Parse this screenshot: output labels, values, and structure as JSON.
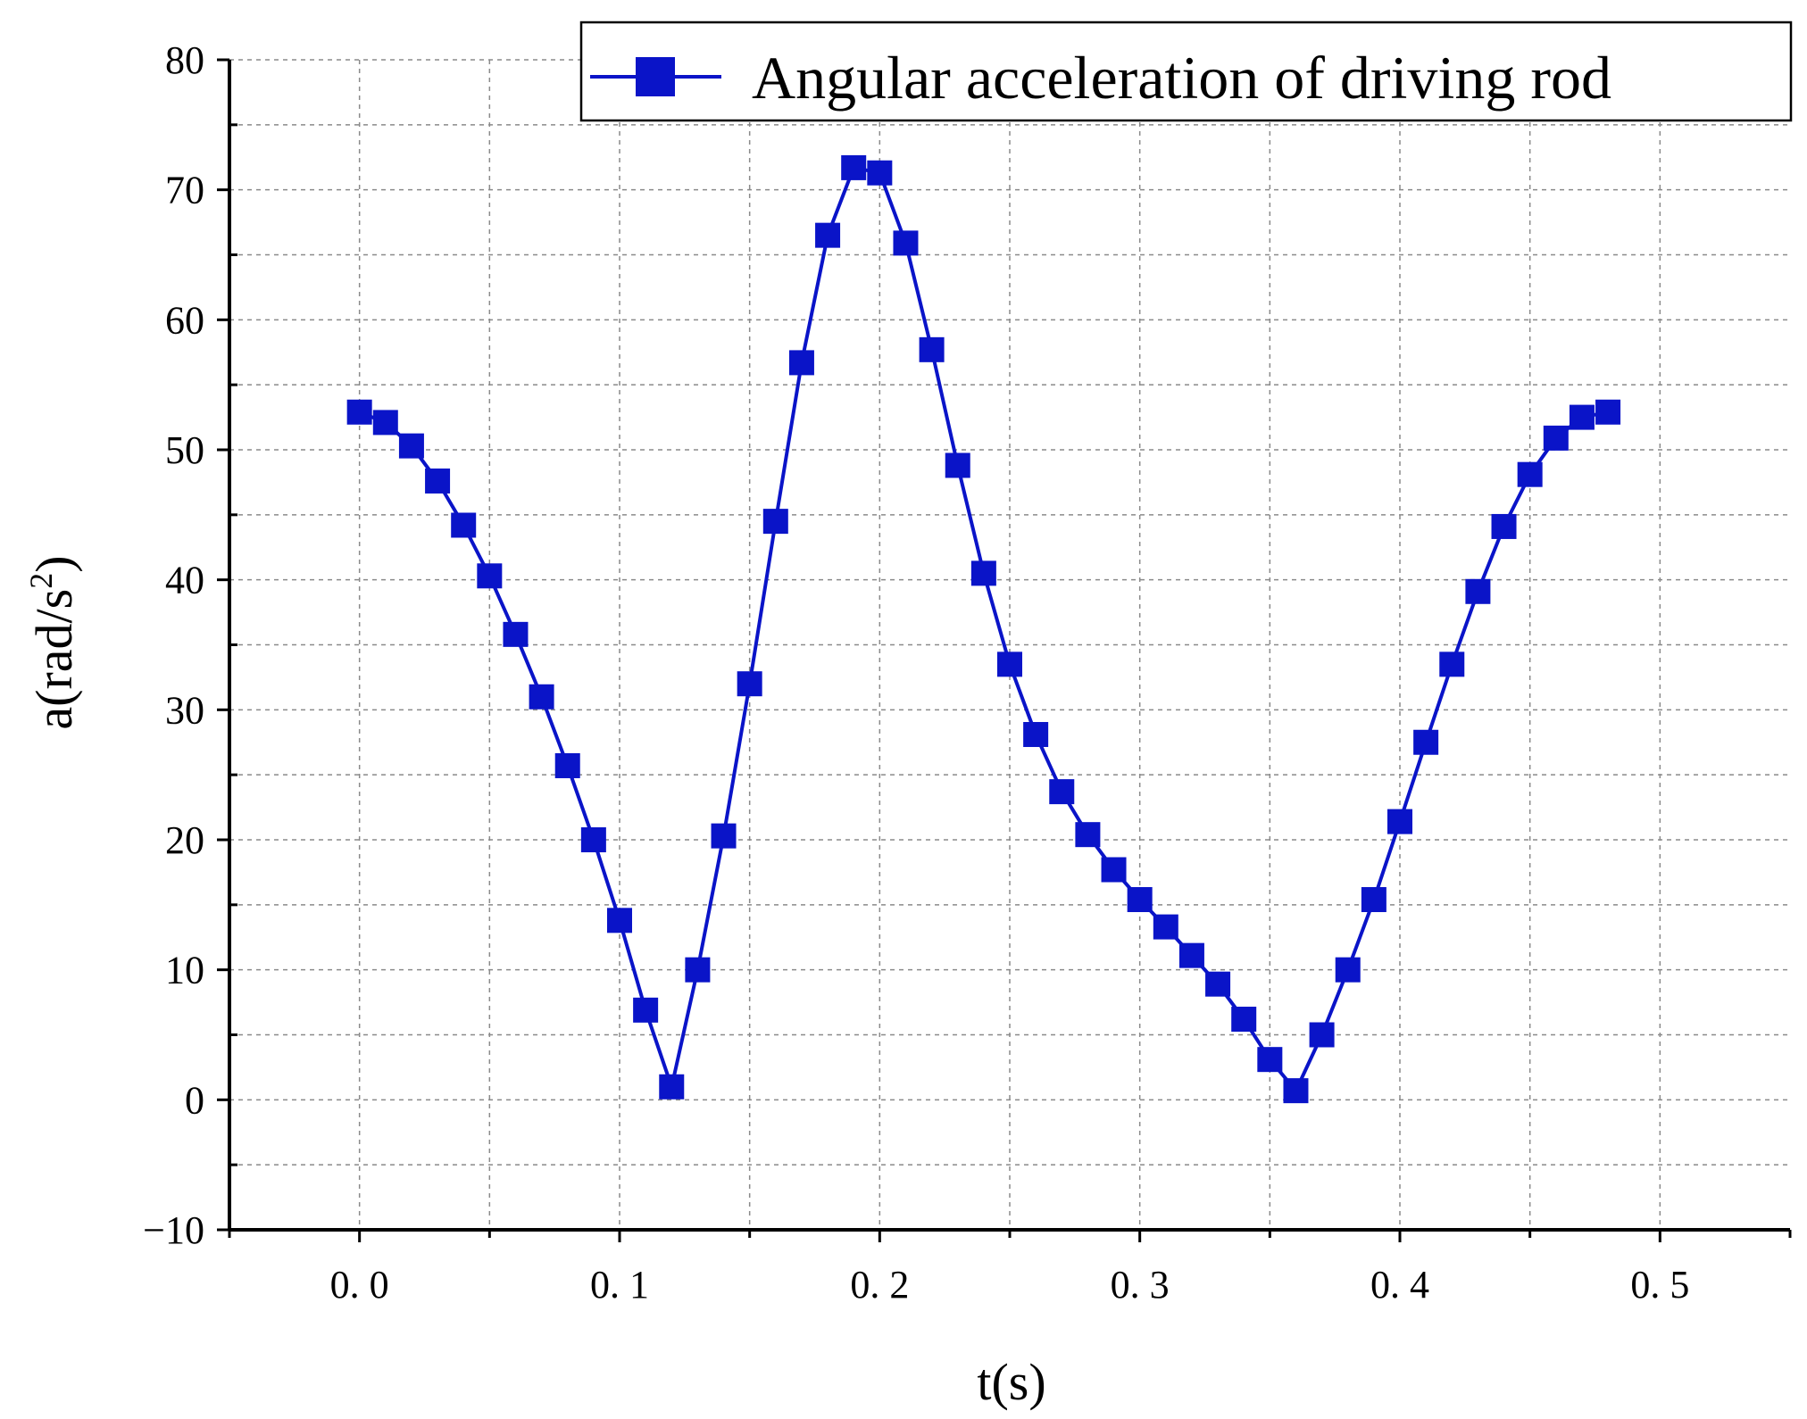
{
  "chart_data": {
    "type": "line",
    "xlabel": "t(s)",
    "ylabel_main": "a(rad/s",
    "ylabel_sup": "2",
    "ylabel_close": ")",
    "xlim": [
      -0.05,
      0.55
    ],
    "ylim": [
      -10,
      80
    ],
    "x_ticks": [
      0.0,
      0.1,
      0.2,
      0.3,
      0.4,
      0.5
    ],
    "x_tick_labels": [
      "0. 0",
      "0. 1",
      "0. 2",
      "0. 3",
      "0. 4",
      "0. 5"
    ],
    "x_minor_ticks": [
      -0.05,
      0.05,
      0.15,
      0.25,
      0.35,
      0.45,
      0.55
    ],
    "y_ticks": [
      -10,
      0,
      10,
      20,
      30,
      40,
      50,
      60,
      70,
      80
    ],
    "y_tick_labels": [
      "−10",
      "0",
      "10",
      "20",
      "30",
      "40",
      "50",
      "60",
      "70",
      "80"
    ],
    "y_minor_ticks": [
      -5,
      5,
      15,
      25,
      35,
      45,
      55,
      65,
      75
    ],
    "grid": true,
    "legend_position": "top-right",
    "series": [
      {
        "name": "Angular acceleration of driving rod",
        "color": "#0a14c8",
        "marker": "square",
        "x": [
          0.0,
          0.01,
          0.02,
          0.03,
          0.04,
          0.05,
          0.06,
          0.07,
          0.08,
          0.09,
          0.1,
          0.11,
          0.12,
          0.13,
          0.14,
          0.15,
          0.16,
          0.17,
          0.18,
          0.19,
          0.2,
          0.21,
          0.22,
          0.23,
          0.24,
          0.25,
          0.26,
          0.27,
          0.28,
          0.29,
          0.3,
          0.31,
          0.32,
          0.33,
          0.34,
          0.35,
          0.36,
          0.37,
          0.38,
          0.39,
          0.4,
          0.41,
          0.42,
          0.43,
          0.44,
          0.45,
          0.46,
          0.47,
          0.48
        ],
        "y": [
          52.9,
          52.1,
          50.3,
          47.6,
          44.2,
          40.3,
          35.8,
          31.0,
          25.7,
          20.0,
          13.8,
          6.9,
          1.0,
          10.0,
          20.3,
          32.0,
          44.5,
          56.7,
          66.5,
          71.7,
          71.3,
          65.9,
          57.7,
          48.8,
          40.5,
          33.5,
          28.1,
          23.7,
          20.4,
          17.7,
          15.4,
          13.3,
          11.1,
          8.9,
          6.2,
          3.1,
          0.7,
          5.0,
          10.0,
          15.4,
          21.4,
          27.5,
          33.5,
          39.1,
          44.1,
          48.1,
          50.9,
          52.5,
          52.9
        ]
      }
    ]
  }
}
